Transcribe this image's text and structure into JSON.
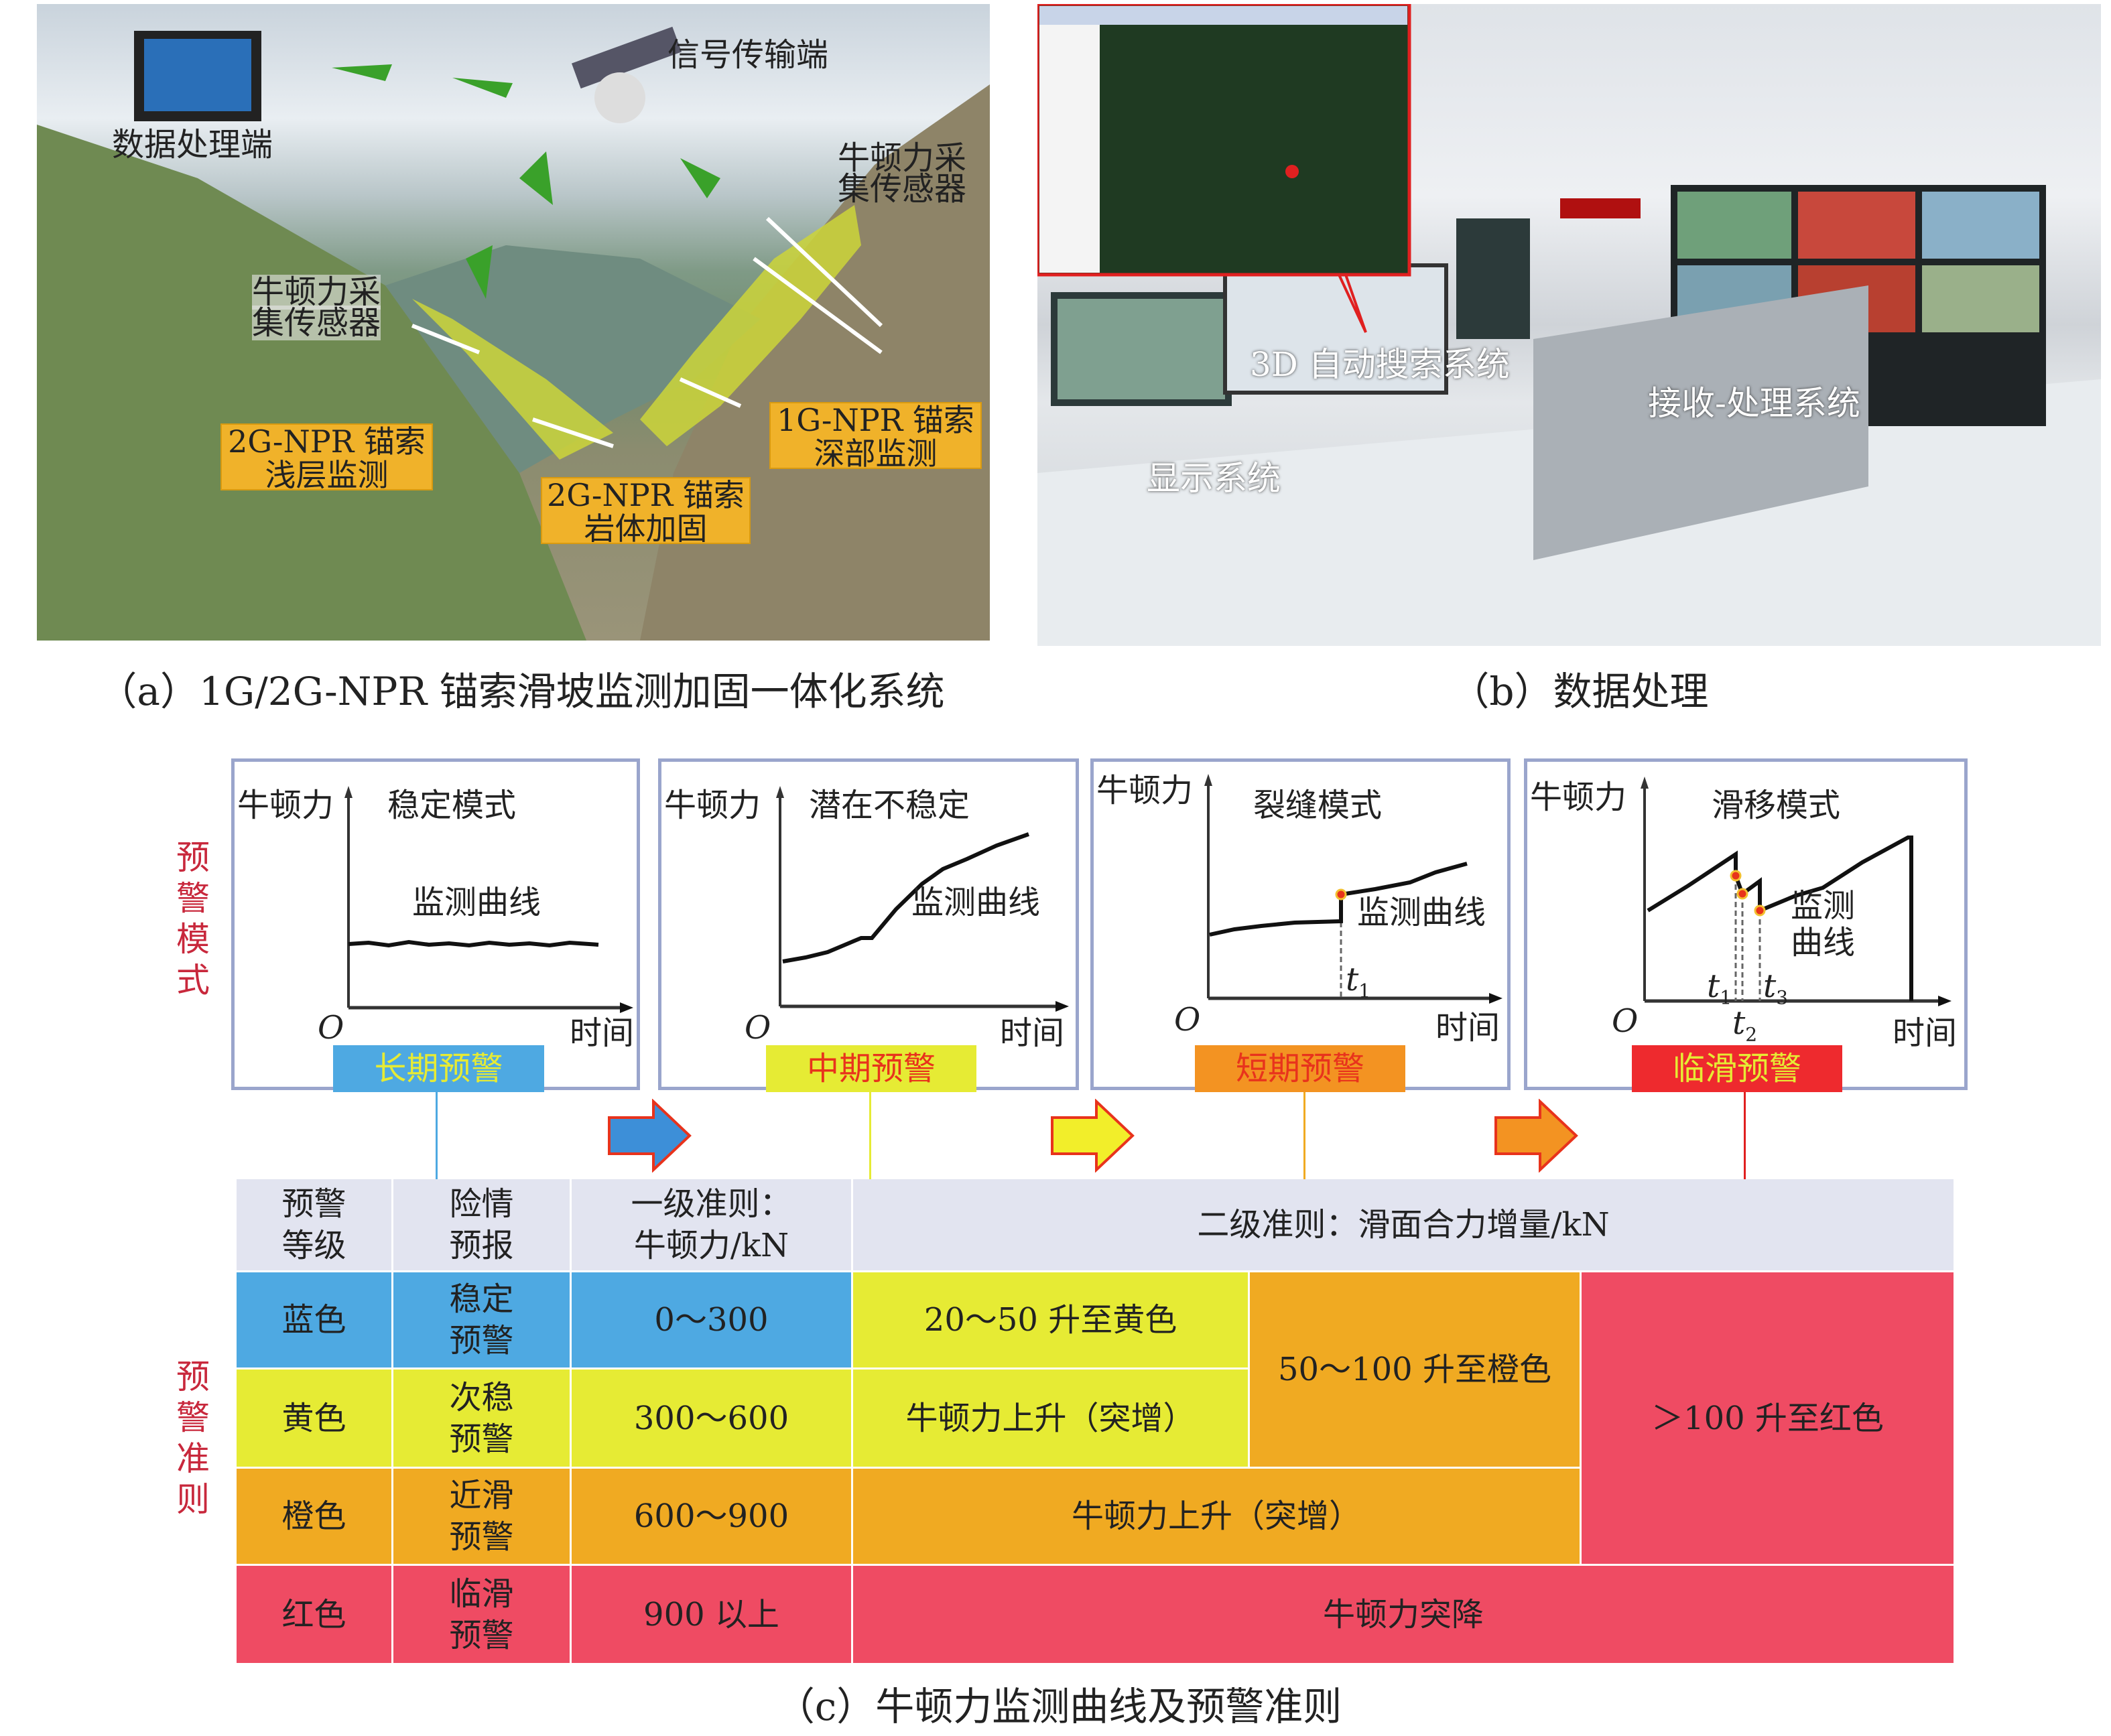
{
  "panel_a": {
    "labels": {
      "signal": "信号传输端",
      "processing": "数据处理端",
      "sensor_right_1": "牛顿力采",
      "sensor_right_2": "集传感器",
      "sensor_left_1": "牛顿力采",
      "sensor_left_2": "集传感器"
    },
    "boxes": [
      {
        "l1": "2G-NPR 锚索",
        "l2": "浅层监测"
      },
      {
        "l1": "2G-NPR 锚索",
        "l2": "岩体加固"
      },
      {
        "l1": "1G-NPR 锚索",
        "l2": "深部监测"
      }
    ],
    "caption": "（a）1G/2G-NPR 锚索滑坡监测加固一体化系统"
  },
  "panel_b": {
    "labels": {
      "search": "3D 自动搜索系统",
      "receive": "接收-处理系统",
      "display": "显示系统"
    },
    "caption": "（b）数据处理"
  },
  "panel_c": {
    "side_label_modes": "预警模式",
    "side_label_criteria": "预警准则",
    "modes": [
      {
        "ylabel": "牛顿力",
        "title": "稳定模式",
        "curve": "监测曲线",
        "origin": "O",
        "xlabel": "时间",
        "badge": "长期预警",
        "badge_bg": "#4ea9e2",
        "badge_fg": "#e6eb34"
      },
      {
        "ylabel": "牛顿力",
        "title": "潜在不稳定",
        "curve": "监测曲线",
        "origin": "O",
        "xlabel": "时间",
        "badge": "中期预警",
        "badge_bg": "#e6eb34",
        "badge_fg": "#e8331c"
      },
      {
        "ylabel": "牛顿力",
        "title": "裂缝模式",
        "curve": "监测曲线",
        "origin": "O",
        "xlabel": "时间",
        "t1": "t",
        "t1sub": "1",
        "badge": "短期预警",
        "badge_bg": "#f39322",
        "badge_fg": "#e8331c"
      },
      {
        "ylabel": "牛顿力",
        "title": "滑移模式",
        "curve1": "监测",
        "curve2": "曲线",
        "origin": "O",
        "xlabel": "时间",
        "t1": "t",
        "t1sub": "1",
        "t2": "t",
        "t2sub": "2",
        "t3": "t",
        "t3sub": "3",
        "badge": "临滑预警",
        "badge_bg": "#ee2a2e",
        "badge_fg": "#e6eb34"
      }
    ],
    "table": {
      "headers": [
        "预警\n等级",
        "险情\n预报",
        "一级准则：\n牛顿力/kN",
        "二级准则：滑面合力增量/kN"
      ],
      "rows": [
        {
          "level": "蓝色",
          "forecast": "稳定\n预警",
          "primary": "0～300"
        },
        {
          "level": "黄色",
          "forecast": "次稳\n预警",
          "primary": "300～600"
        },
        {
          "level": "橙色",
          "forecast": "近滑\n预警",
          "primary": "600～900"
        },
        {
          "level": "红色",
          "forecast": "临滑\n预警",
          "primary": "900 以上"
        }
      ],
      "secondary": {
        "blue_yellow": "20～50 升至黄色",
        "yellow_yellow": "牛顿力上升（突增）",
        "orange_span": "50～100 升至橙色",
        "red_span": "＞100 升至红色",
        "orange_row": "牛顿力上升（突增）",
        "red_row": "牛顿力突降"
      },
      "colors": {
        "blue": "#4ea9e2",
        "yellow": "#e6eb34",
        "orange": "#f0aa22",
        "red": "#ef4b63",
        "header": "#e2e4f0"
      }
    },
    "caption": "（c）牛顿力监测曲线及预警准则"
  }
}
